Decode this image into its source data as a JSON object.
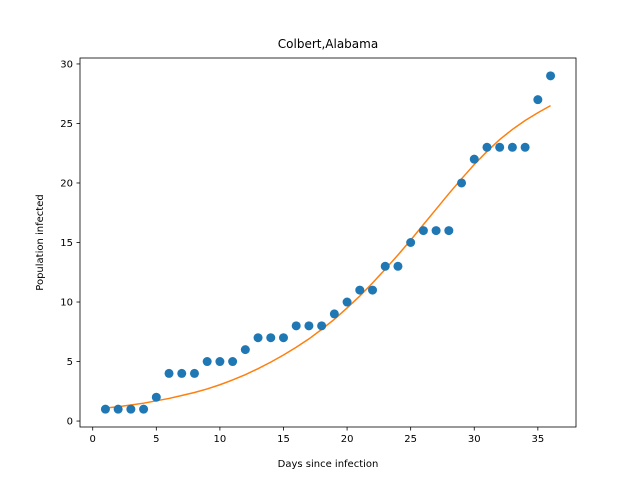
{
  "chart_data": {
    "type": "scatter",
    "title": "Colbert,Alabama",
    "xlabel": "Days since infection",
    "ylabel": "Population infected",
    "xlim": [
      -1,
      38
    ],
    "ylim": [
      -0.5,
      30.5
    ],
    "xticks": [
      0,
      5,
      10,
      15,
      20,
      25,
      30,
      35
    ],
    "yticks": [
      0,
      5,
      10,
      15,
      20,
      25,
      30
    ],
    "grid": false,
    "series": [
      {
        "type": "scatter",
        "color": "#1f77b4",
        "x": [
          1,
          2,
          3,
          4,
          5,
          6,
          7,
          8,
          9,
          10,
          11,
          12,
          13,
          14,
          15,
          16,
          17,
          18,
          19,
          20,
          21,
          22,
          23,
          24,
          25,
          26,
          27,
          28,
          29,
          30,
          31,
          32,
          33,
          34,
          35,
          36
        ],
        "y": [
          1,
          1,
          1,
          1,
          2,
          4,
          4,
          4,
          5,
          5,
          5,
          6,
          7,
          7,
          7,
          8,
          8,
          8,
          9,
          10,
          11,
          11,
          13,
          13,
          15,
          16,
          16,
          16,
          20,
          22,
          23,
          23,
          23,
          23,
          27,
          29
        ]
      },
      {
        "type": "line",
        "color": "#ff7f0e",
        "x": [
          1,
          2,
          3,
          4,
          5,
          6,
          7,
          8,
          9,
          10,
          11,
          12,
          13,
          14,
          15,
          16,
          17,
          18,
          19,
          20,
          21,
          22,
          23,
          24,
          25,
          26,
          27,
          28,
          29,
          30,
          31,
          32,
          33,
          34,
          35,
          36
        ],
        "y": [
          1.1,
          1.2,
          1.35,
          1.5,
          1.7,
          1.9,
          2.15,
          2.4,
          2.7,
          3.05,
          3.45,
          3.9,
          4.4,
          4.95,
          5.55,
          6.2,
          6.9,
          7.7,
          8.55,
          9.5,
          10.5,
          11.6,
          12.75,
          13.95,
          15.2,
          16.5,
          17.8,
          19.1,
          20.35,
          21.55,
          22.65,
          23.65,
          24.5,
          25.25,
          25.9,
          26.5
        ]
      }
    ]
  }
}
